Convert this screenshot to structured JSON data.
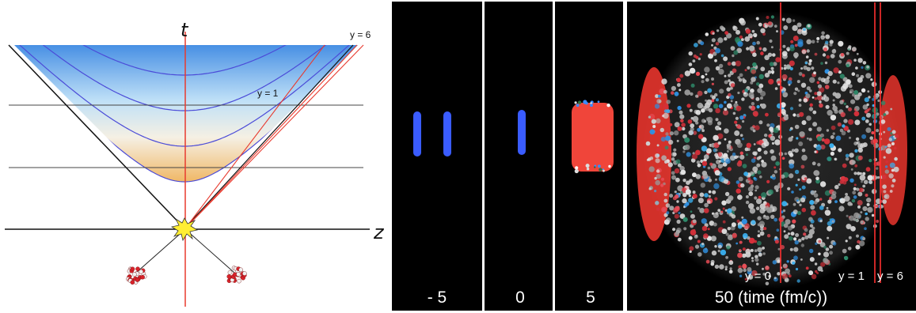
{
  "minkowski": {
    "t_axis_label": "t",
    "z_axis_label": "z",
    "rapidity_labels": [
      "y = 6",
      "y = 1"
    ]
  },
  "panels": [
    {
      "label": "- 5",
      "content": "two-nuclei-approaching"
    },
    {
      "label": "0",
      "content": "nuclei-overlap"
    },
    {
      "label": "5",
      "content": "early-fireball"
    },
    {
      "label": "50 (time (fm/c))",
      "content": "expanded-fireball"
    }
  ],
  "cut_labels": [
    "y = 0",
    "y = 1",
    "y = 6"
  ],
  "colors": {
    "background_panels": "#000000",
    "nuclei_blue": "#3a5cff",
    "fireball_red": "#f0453a",
    "beam_line": "#e83a2e",
    "hyperbola": "#4b4bd8",
    "gradient_top": "#2f7fe0",
    "gradient_bottom": "#f2c27a",
    "collision_flash": "#ffee33"
  }
}
